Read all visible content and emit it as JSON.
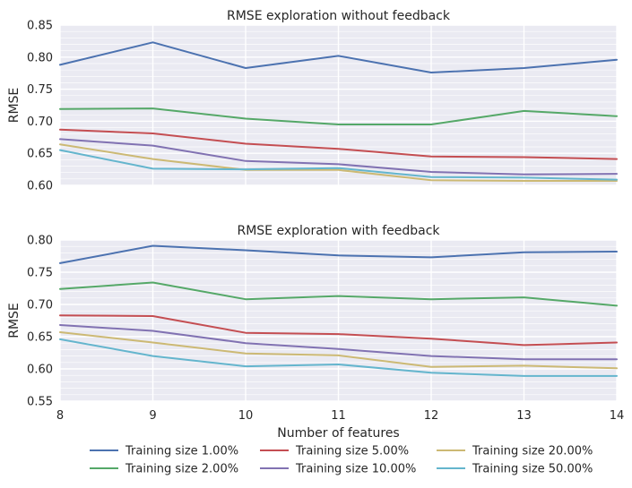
{
  "colors": {
    "plot_background": "#eaeaf2",
    "grid": "#ffffff",
    "text": "#262626",
    "series": [
      "#4c72b0",
      "#55a868",
      "#c44e52",
      "#8172b2",
      "#ccb974",
      "#64b5cd"
    ]
  },
  "chart_data": [
    {
      "type": "line",
      "title": "RMSE exploration without feedback",
      "xlabel": "",
      "ylabel": "RMSE",
      "xlim": [
        8,
        14
      ],
      "ylim": [
        0.6,
        0.85
      ],
      "yticks": [
        "0.60",
        "0.65",
        "0.70",
        "0.75",
        "0.80",
        "0.85"
      ],
      "grid": true,
      "x": [
        8,
        9,
        10,
        11,
        12,
        13,
        14
      ],
      "series": [
        {
          "name": "Training size 1.00%",
          "values": [
            0.788,
            0.823,
            0.783,
            0.802,
            0.776,
            0.783,
            0.796
          ]
        },
        {
          "name": "Training size 2.00%",
          "values": [
            0.719,
            0.72,
            0.704,
            0.695,
            0.695,
            0.716,
            0.708
          ]
        },
        {
          "name": "Training size 5.00%",
          "values": [
            0.687,
            0.681,
            0.665,
            0.657,
            0.645,
            0.644,
            0.641
          ]
        },
        {
          "name": "Training size 10.00%",
          "values": [
            0.672,
            0.662,
            0.638,
            0.633,
            0.621,
            0.617,
            0.618
          ]
        },
        {
          "name": "Training size 20.00%",
          "values": [
            0.664,
            0.641,
            0.624,
            0.624,
            0.608,
            0.607,
            0.607
          ]
        },
        {
          "name": "Training size 50.00%",
          "values": [
            0.655,
            0.626,
            0.625,
            0.627,
            0.613,
            0.612,
            0.609
          ]
        }
      ]
    },
    {
      "type": "line",
      "title": "RMSE exploration with feedback",
      "xlabel": "Number of features",
      "ylabel": "RMSE",
      "xlim": [
        8,
        14
      ],
      "ylim": [
        0.55,
        0.8
      ],
      "xticks": [
        "8",
        "9",
        "10",
        "11",
        "12",
        "13",
        "14"
      ],
      "yticks": [
        "0.55",
        "0.60",
        "0.65",
        "0.70",
        "0.75",
        "0.80"
      ],
      "grid": true,
      "x": [
        8,
        9,
        10,
        11,
        12,
        13,
        14
      ],
      "series": [
        {
          "name": "Training size 1.00%",
          "values": [
            0.764,
            0.791,
            0.784,
            0.776,
            0.773,
            0.781,
            0.782
          ]
        },
        {
          "name": "Training size 2.00%",
          "values": [
            0.724,
            0.734,
            0.708,
            0.713,
            0.708,
            0.711,
            0.698
          ]
        },
        {
          "name": "Training size 5.00%",
          "values": [
            0.683,
            0.682,
            0.656,
            0.654,
            0.647,
            0.637,
            0.641
          ]
        },
        {
          "name": "Training size 10.00%",
          "values": [
            0.668,
            0.659,
            0.64,
            0.631,
            0.62,
            0.615,
            0.615
          ]
        },
        {
          "name": "Training size 20.00%",
          "values": [
            0.657,
            0.641,
            0.624,
            0.621,
            0.603,
            0.605,
            0.601
          ]
        },
        {
          "name": "Training size 50.00%",
          "values": [
            0.646,
            0.62,
            0.604,
            0.607,
            0.594,
            0.589,
            0.589
          ]
        }
      ]
    }
  ],
  "legend": {
    "placement": "bottom-center",
    "columns": 3,
    "entries": [
      "Training size 1.00%",
      "Training size 2.00%",
      "Training size 5.00%",
      "Training size 10.00%",
      "Training size 20.00%",
      "Training size 50.00%"
    ]
  }
}
